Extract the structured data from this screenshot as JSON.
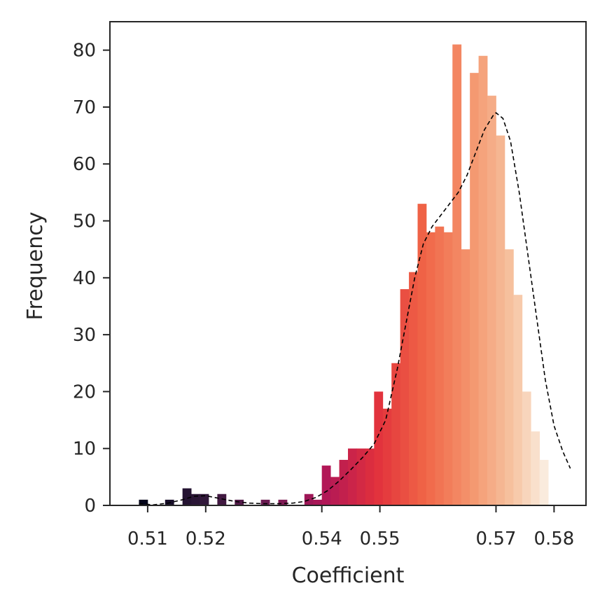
{
  "chart_data": {
    "type": "bar",
    "title": "",
    "xlabel": "Coefficient",
    "ylabel": "Frequency",
    "xlim": [
      0.5035,
      0.5855
    ],
    "ylim": [
      0,
      85
    ],
    "x_ticks": [
      0.51,
      0.52,
      0.54,
      0.55,
      0.57,
      0.58
    ],
    "x_tick_labels": [
      "0.51",
      "0.52",
      "0.54",
      "0.55",
      "0.57",
      "0.58"
    ],
    "y_ticks": [
      0,
      10,
      20,
      30,
      40,
      50,
      60,
      70,
      80
    ],
    "y_tick_labels": [
      "0",
      "10",
      "20",
      "30",
      "40",
      "50",
      "60",
      "70",
      "80"
    ],
    "grid": false,
    "bin_width": 0.0015,
    "bin_start": 0.5085,
    "counts": [
      1,
      0,
      0,
      1,
      0,
      3,
      2,
      2,
      0,
      2,
      0,
      1,
      0,
      0,
      1,
      0,
      1,
      0,
      0,
      2,
      1,
      7,
      5,
      8,
      10,
      10,
      10,
      20,
      17,
      25,
      38,
      41,
      53,
      48,
      49,
      48,
      81,
      45,
      76,
      79,
      72,
      65,
      45,
      37,
      20,
      13,
      8
    ],
    "colormap": "rocket",
    "kde": {
      "style": "dashed",
      "color": "#000000",
      "x": [
        0.5085,
        0.511,
        0.5135,
        0.516,
        0.518,
        0.52,
        0.5225,
        0.525,
        0.5275,
        0.53,
        0.5325,
        0.535,
        0.537,
        0.539,
        0.541,
        0.543,
        0.545,
        0.547,
        0.549,
        0.551,
        0.553,
        0.5545,
        0.556,
        0.5575,
        0.559,
        0.5605,
        0.562,
        0.5635,
        0.565,
        0.5665,
        0.568,
        0.5695,
        0.57,
        0.5712,
        0.5725,
        0.574,
        0.5755,
        0.577,
        0.5785,
        0.58,
        0.5815,
        0.5828
      ],
      "y": [
        0.3,
        0.1,
        0.4,
        1.0,
        1.6,
        1.7,
        1.2,
        0.7,
        0.4,
        0.3,
        0.3,
        0.4,
        0.7,
        1.4,
        2.6,
        4.3,
        6.3,
        8.4,
        10.8,
        15.0,
        24.0,
        32.0,
        40.0,
        46.0,
        49.0,
        51.0,
        53.0,
        55.0,
        58.0,
        62.0,
        66.0,
        68.5,
        69.0,
        68.0,
        64.0,
        55.0,
        44.0,
        33.0,
        22.0,
        14.0,
        9.5,
        6.5
      ]
    }
  }
}
